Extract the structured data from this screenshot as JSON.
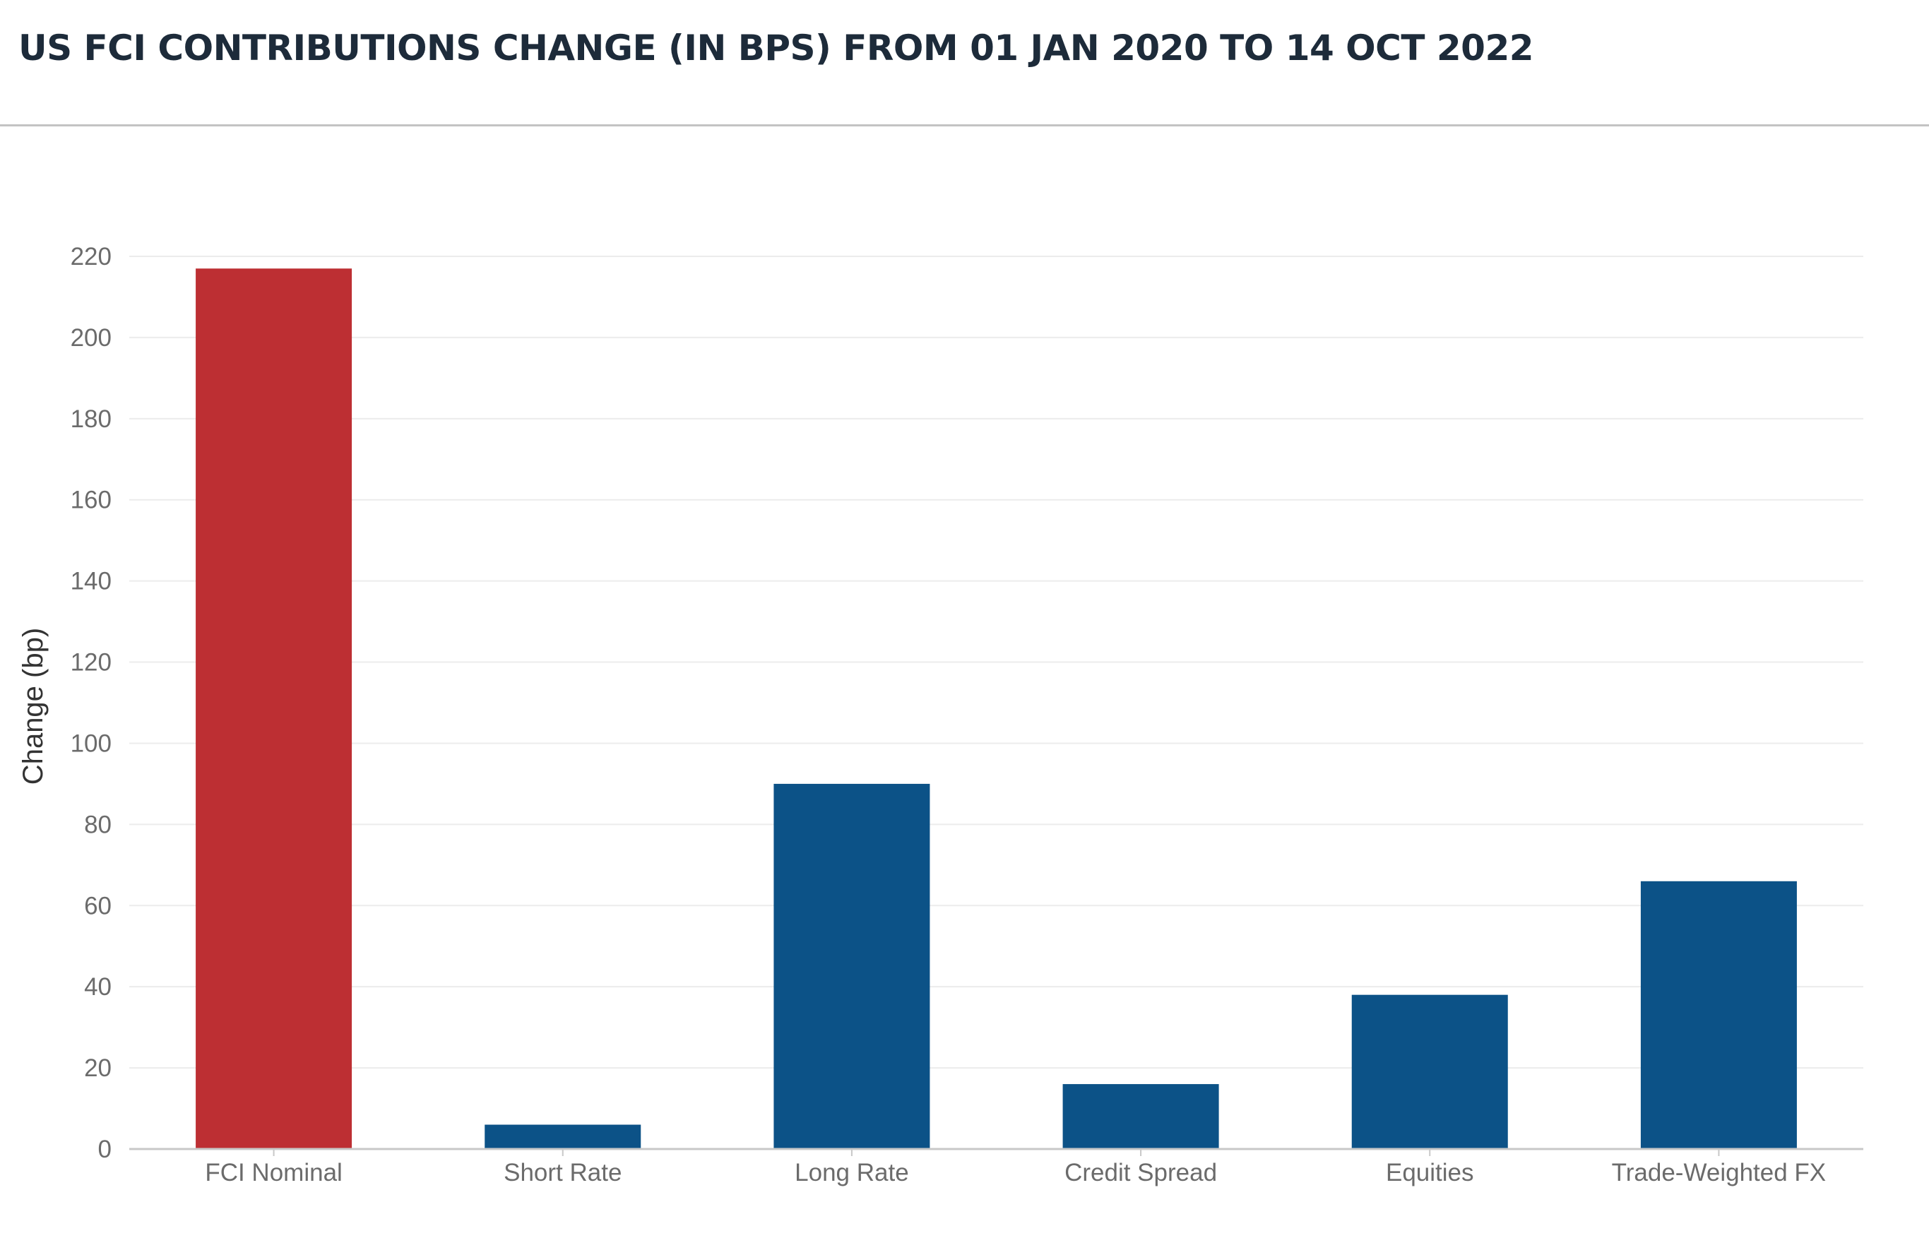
{
  "chart_data": {
    "type": "bar",
    "title": "US FCI CONTRIBUTIONS CHANGE (IN BPS) FROM 01 JAN 2020 TO 14 OCT 2022",
    "xlabel": "",
    "ylabel": "Change (bp)",
    "categories": [
      "FCI Nominal",
      "Short Rate",
      "Long Rate",
      "Credit Spread",
      "Equities",
      "Trade-Weighted FX"
    ],
    "values": [
      217,
      6,
      90,
      16,
      38,
      66
    ],
    "colors": [
      "#bd2f33",
      "#0c5287",
      "#0c5287",
      "#0c5287",
      "#0c5287",
      "#0c5287"
    ],
    "yticks": [
      0,
      20,
      40,
      60,
      80,
      100,
      120,
      140,
      160,
      180,
      200,
      220
    ],
    "ylim": [
      0,
      220
    ],
    "grid": true,
    "legend": "none"
  }
}
